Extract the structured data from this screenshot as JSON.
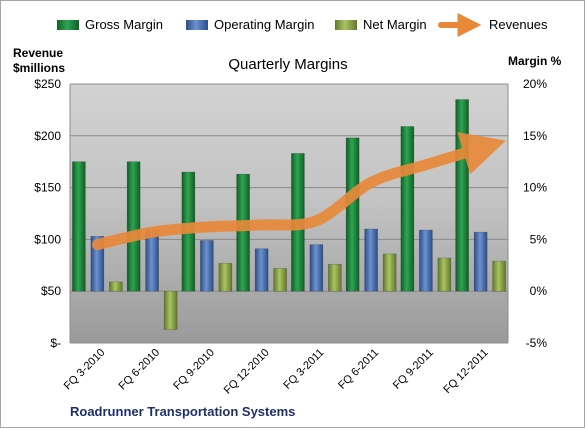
{
  "chart_data": {
    "type": "bar",
    "title": "Quarterly Margins",
    "company": "Roadrunner Transportation Systems",
    "left_axis_title_line1": "Revenue",
    "left_axis_title_line2": "$millions",
    "right_axis_title": "Margin %",
    "categories": [
      "FQ 3-2010",
      "FQ 6-2010",
      "FQ 9-2010",
      "FQ 12-2010",
      "FQ 3-2011",
      "FQ 6-2011",
      "FQ 9-2011",
      "FQ 12-2011"
    ],
    "left_ticks": [
      "$-",
      "$50",
      "$100",
      "$150",
      "$200",
      "$250"
    ],
    "right_ticks": [
      "-5%",
      "0%",
      "5%",
      "10%",
      "15%",
      "20%"
    ],
    "revenue_ylim": [
      0,
      250
    ],
    "margin_ylim": [
      -5,
      20
    ],
    "legend_position": "top",
    "series": [
      {
        "name": "Gross Margin",
        "axis": "right",
        "color": "#1e8a3c",
        "values": [
          12.5,
          12.5,
          11.5,
          11.3,
          13.3,
          14.8,
          15.9,
          18.5
        ]
      },
      {
        "name": "Operating Margin",
        "axis": "right",
        "color": "#4f74b8",
        "values": [
          5.3,
          5.9,
          4.9,
          4.1,
          4.5,
          6.0,
          5.9,
          5.7
        ]
      },
      {
        "name": "Net Margin",
        "axis": "right",
        "color": "#93ad4a",
        "values": [
          0.9,
          -3.7,
          2.7,
          2.2,
          2.6,
          3.6,
          3.2,
          2.9
        ]
      },
      {
        "name": "Revenues",
        "axis": "left",
        "color": "#e8893a",
        "values": [
          95,
          107,
          112,
          114,
          118,
          155,
          172,
          188
        ]
      }
    ]
  }
}
